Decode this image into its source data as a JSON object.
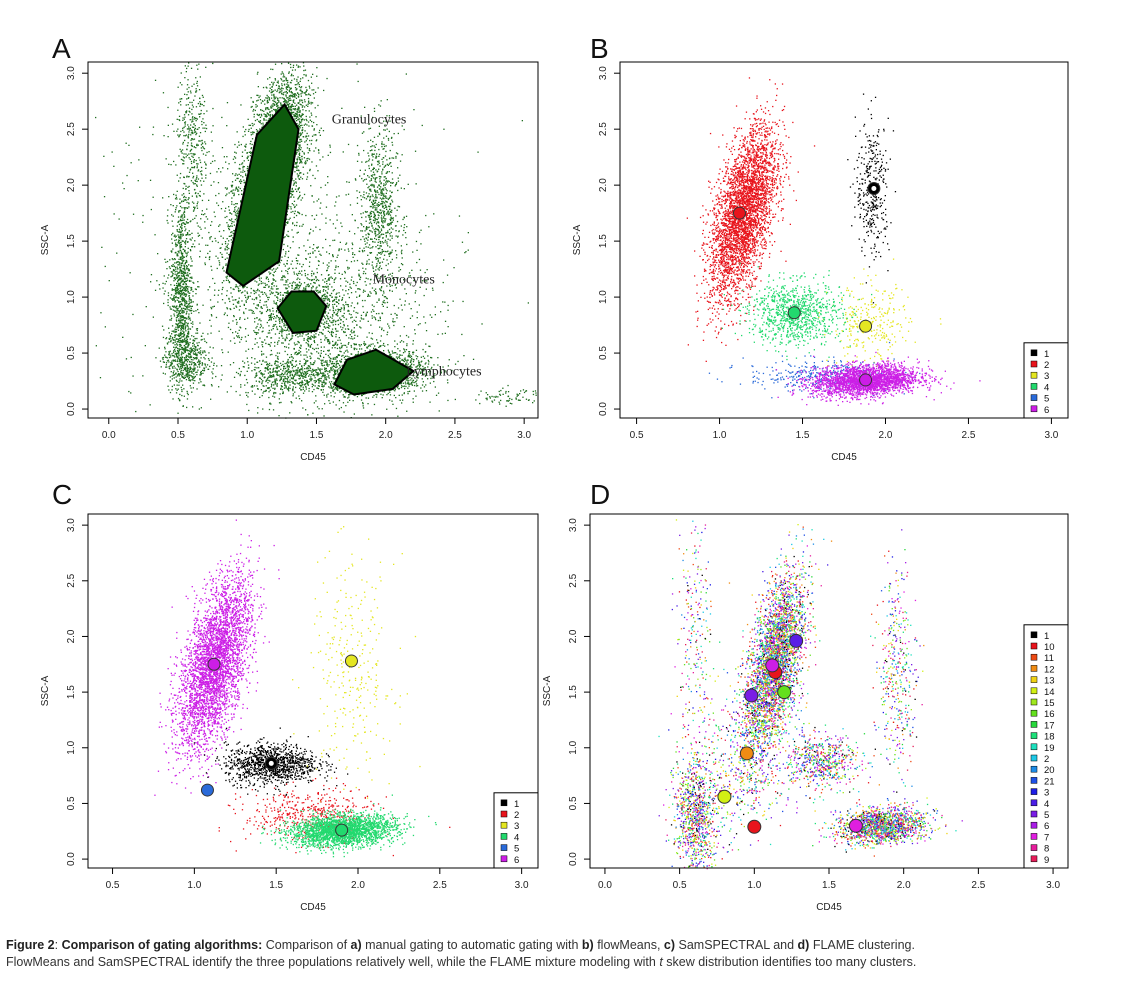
{
  "figure": {
    "caption": {
      "label": "Figure 2",
      "sep": ":  ",
      "heading": "Comparison of gating algorithms:",
      "t1": " Comparison of ",
      "a": "a)",
      "t2": " manual gating to automatic gating with ",
      "b": "b)",
      "t3": " flowMeans, ",
      "c": "c)",
      "t4": " SamSPECTRAL and ",
      "d": "d)",
      "t5": " FLAME clustering.",
      "line2a": "FlowMeans and SamSPECTRAL identify the three populations relatively well, while the FLAME mixture modeling with ",
      "line2t": "t",
      "line2b": " skew distribution identifies too many clusters."
    }
  },
  "chart_data": [
    {
      "panel": "A",
      "type": "scatter",
      "xlabel": "CD45",
      "ylabel": "SSC-A",
      "xlim": [
        -0.15,
        3.1
      ],
      "ylim": [
        -0.08,
        3.1
      ],
      "xticks": [
        "0.0",
        "0.5",
        "1.0",
        "1.5",
        "2.0",
        "2.5",
        "3.0"
      ],
      "yticks": [
        "0.0",
        "0.5",
        "1.0",
        "1.5",
        "2.0",
        "2.5",
        "3.0"
      ],
      "point_color": "#1f6e1f",
      "gates": [
        {
          "points": [
            [
              0.85,
              1.22
            ],
            [
              1.07,
              2.45
            ],
            [
              1.27,
              2.72
            ],
            [
              1.37,
              2.5
            ],
            [
              1.23,
              1.32
            ],
            [
              0.97,
              1.1
            ]
          ]
        },
        {
          "points": [
            [
              1.22,
              0.9
            ],
            [
              1.32,
              1.05
            ],
            [
              1.48,
              1.05
            ],
            [
              1.57,
              0.92
            ],
            [
              1.5,
              0.7
            ],
            [
              1.33,
              0.68
            ]
          ]
        },
        {
          "points": [
            [
              1.63,
              0.22
            ],
            [
              1.72,
              0.44
            ],
            [
              1.93,
              0.53
            ],
            [
              2.2,
              0.34
            ],
            [
              2.05,
              0.18
            ],
            [
              1.77,
              0.13
            ]
          ]
        }
      ],
      "annotations": [
        {
          "text": "Granulocytes",
          "x": 1.88,
          "y": 2.55
        },
        {
          "text": "Monocytes",
          "x": 2.13,
          "y": 1.12
        },
        {
          "text": "Lymphocytes",
          "x": 2.42,
          "y": 0.3
        }
      ]
    },
    {
      "panel": "B",
      "type": "scatter",
      "xlabel": "CD45",
      "ylabel": "SSC-A",
      "xlim": [
        0.4,
        3.1
      ],
      "ylim": [
        -0.08,
        3.1
      ],
      "xticks": [
        "0.5",
        "1.0",
        "1.5",
        "2.0",
        "2.5",
        "3.0"
      ],
      "yticks": [
        "0.0",
        "0.5",
        "1.0",
        "1.5",
        "2.0",
        "2.5",
        "3.0"
      ],
      "legend": [
        "1",
        "2",
        "3",
        "4",
        "5",
        "6"
      ],
      "legend_colors": [
        "#000000",
        "#e8141c",
        "#e4e622",
        "#22d96e",
        "#2a6ad9",
        "#cc1ee6"
      ],
      "centers": [
        {
          "label": "1",
          "x": 1.93,
          "y": 1.97
        },
        {
          "label": "2",
          "x": 1.12,
          "y": 1.75
        },
        {
          "label": "3",
          "x": 1.88,
          "y": 0.74
        },
        {
          "label": "4",
          "x": 1.45,
          "y": 0.86
        },
        {
          "label": "6",
          "x": 1.88,
          "y": 0.26
        }
      ]
    },
    {
      "panel": "C",
      "type": "scatter",
      "xlabel": "CD45",
      "ylabel": "SSC-A",
      "xlim": [
        0.35,
        3.1
      ],
      "ylim": [
        -0.08,
        3.1
      ],
      "xticks": [
        "0.5",
        "1.0",
        "1.5",
        "2.0",
        "2.5",
        "3.0"
      ],
      "yticks": [
        "0.0",
        "0.5",
        "1.0",
        "1.5",
        "2.0",
        "2.5",
        "3.0"
      ],
      "legend": [
        "1",
        "2",
        "3",
        "4",
        "5",
        "6"
      ],
      "legend_colors": [
        "#000000",
        "#e8141c",
        "#e4e622",
        "#22d96e",
        "#2a6ad9",
        "#cc1ee6"
      ],
      "centers": [
        {
          "label": "1",
          "x": 1.47,
          "y": 0.86
        },
        {
          "label": "3",
          "x": 1.96,
          "y": 1.78
        },
        {
          "label": "4",
          "x": 1.9,
          "y": 0.26
        },
        {
          "label": "5",
          "x": 1.08,
          "y": 0.62
        },
        {
          "label": "6",
          "x": 1.12,
          "y": 1.75
        }
      ]
    },
    {
      "panel": "D",
      "type": "scatter",
      "xlabel": "CD45",
      "ylabel": "SSC-A",
      "xlim": [
        -0.1,
        3.1
      ],
      "ylim": [
        -0.08,
        3.1
      ],
      "xticks": [
        "0.0",
        "0.5",
        "1.0",
        "1.5",
        "2.0",
        "2.5",
        "3.0"
      ],
      "yticks": [
        "0.0",
        "0.5",
        "1.0",
        "1.5",
        "2.0",
        "2.5",
        "3.0"
      ],
      "legend": [
        "1",
        "10",
        "11",
        "12",
        "13",
        "14",
        "15",
        "16",
        "17",
        "18",
        "19",
        "2",
        "20",
        "21",
        "3",
        "4",
        "5",
        "6",
        "7",
        "8",
        "9"
      ],
      "legend_colors": [
        "#000000",
        "#e8141c",
        "#ee4a14",
        "#f08c14",
        "#f0d214",
        "#d2f014",
        "#a0e81e",
        "#64e01e",
        "#28d83c",
        "#1ee07a",
        "#1ee0be",
        "#1ec8e6",
        "#1e8ce6",
        "#1e50e6",
        "#1e1ee6",
        "#4a1ee6",
        "#7a1ee6",
        "#aa1ee6",
        "#e01ee0",
        "#e61e9c",
        "#e61e5a"
      ],
      "centers": [
        {
          "label": "1",
          "x": 1.28,
          "y": 1.96,
          "color": "#5a1ee6"
        },
        {
          "label": "10",
          "x": 1.14,
          "y": 1.68,
          "color": "#e8141c"
        },
        {
          "label": "6",
          "x": 1.12,
          "y": 1.74,
          "color": "#cc1ee6"
        },
        {
          "label": "15",
          "x": 1.2,
          "y": 1.5,
          "color": "#64e01e"
        },
        {
          "label": "5",
          "x": 0.98,
          "y": 1.47,
          "color": "#7a1ee6"
        },
        {
          "label": "12",
          "x": 0.95,
          "y": 0.95,
          "color": "#f08c14"
        },
        {
          "label": "14",
          "x": 0.8,
          "y": 0.56,
          "color": "#d2f014"
        },
        {
          "label": "2",
          "x": 1.0,
          "y": 0.29,
          "color": "#e8141c"
        },
        {
          "label": "7",
          "x": 1.68,
          "y": 0.3,
          "color": "#e01ee0"
        }
      ]
    }
  ]
}
